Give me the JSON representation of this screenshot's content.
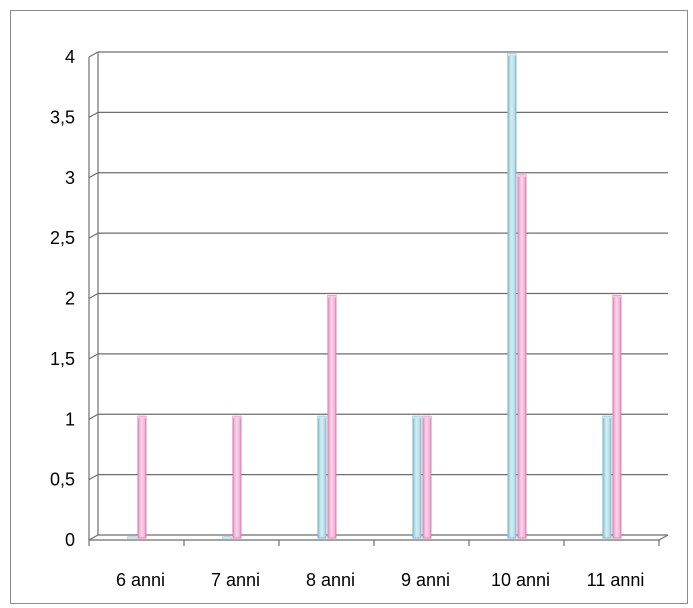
{
  "chart_data": {
    "type": "bar",
    "categories": [
      "6 anni",
      "7 anni",
      "8 anni",
      "9 anni",
      "10 anni",
      "11 anni"
    ],
    "series": [
      {
        "values": [
          0,
          0,
          1,
          1,
          4,
          1
        ],
        "color": "#b7dde8"
      },
      {
        "values": [
          1,
          1,
          2,
          1,
          3,
          2
        ],
        "color": "#f4b6d9"
      }
    ],
    "ylim": [
      0,
      4
    ],
    "yticks": [
      "0",
      "0,5",
      "1",
      "1,5",
      "2",
      "2,5",
      "3",
      "3,5",
      "4"
    ],
    "grid": true,
    "legend": "none",
    "style": "3d-column"
  }
}
